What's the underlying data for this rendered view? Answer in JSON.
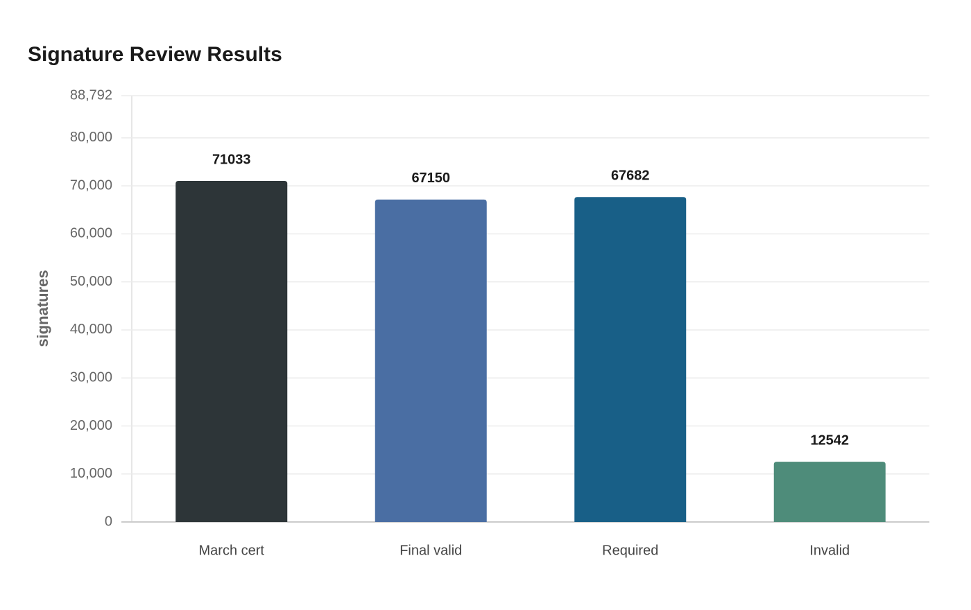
{
  "chart_data": {
    "type": "bar",
    "title": "Signature Review Results",
    "y_label": "signatures",
    "categories": [
      "March cert",
      "Final valid",
      "Required",
      "Invalid"
    ],
    "values": [
      71033,
      67150,
      67682,
      12542
    ],
    "colors": [
      "#2d3538",
      "#4a6ea3",
      "#185f87",
      "#4e8c7a"
    ],
    "ylim": [
      0,
      88792
    ],
    "yticks": [
      0,
      {
        "value": 10000,
        "label": "10,000"
      },
      {
        "value": 20000,
        "label": "20,000"
      },
      {
        "value": 30000,
        "label": "30,000"
      },
      {
        "value": 40000,
        "label": "40,000"
      },
      {
        "value": 50000,
        "label": "50,000"
      },
      {
        "value": 60000,
        "label": "60,000"
      },
      {
        "value": 70000,
        "label": "70,000"
      },
      {
        "value": 80000,
        "label": "80,000"
      },
      {
        "value": 88792,
        "label": "88,792"
      }
    ],
    "grid": true
  }
}
